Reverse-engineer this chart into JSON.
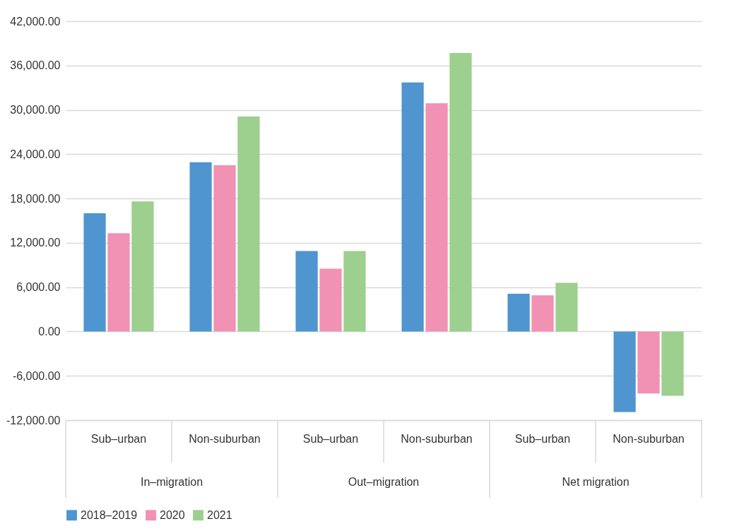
{
  "chart_data": {
    "type": "bar",
    "categories": [
      "Sub–urban",
      "Non-suburban",
      "Sub–urban",
      "Non-suburban",
      "Sub–urban",
      "Non-suburban"
    ],
    "annotations": [
      "In–migration",
      "Out–migration",
      "Net migration"
    ],
    "series": [
      {
        "name": "2018–2019",
        "color": "#4f95d0",
        "values": [
          16000,
          22900,
          10900,
          33700,
          5100,
          -10900
        ]
      },
      {
        "name": "2020",
        "color": "#f191b4",
        "values": [
          13300,
          22500,
          8500,
          30900,
          4900,
          -8400
        ]
      },
      {
        "name": "2021",
        "color": "#9dcf8f",
        "values": [
          17600,
          29100,
          10900,
          37700,
          6600,
          -8700
        ]
      }
    ],
    "ylim": [
      -12000,
      42000
    ],
    "yticks": [
      {
        "value": -12000,
        "label": "-12,000.00"
      },
      {
        "value": -6000,
        "label": "-6,000.00"
      },
      {
        "value": 0,
        "label": "0.00"
      },
      {
        "value": 6000,
        "label": "6,000.00"
      },
      {
        "value": 12000,
        "label": "12,000.00"
      },
      {
        "value": 18000,
        "label": "18,000.00"
      },
      {
        "value": 24000,
        "label": "24,000.00"
      },
      {
        "value": 30000,
        "label": "30,000.00"
      },
      {
        "value": 36000,
        "label": "36,000.00"
      },
      {
        "value": 42000,
        "label": "42,000.00"
      }
    ],
    "grid": "y",
    "legend": "bottom"
  }
}
